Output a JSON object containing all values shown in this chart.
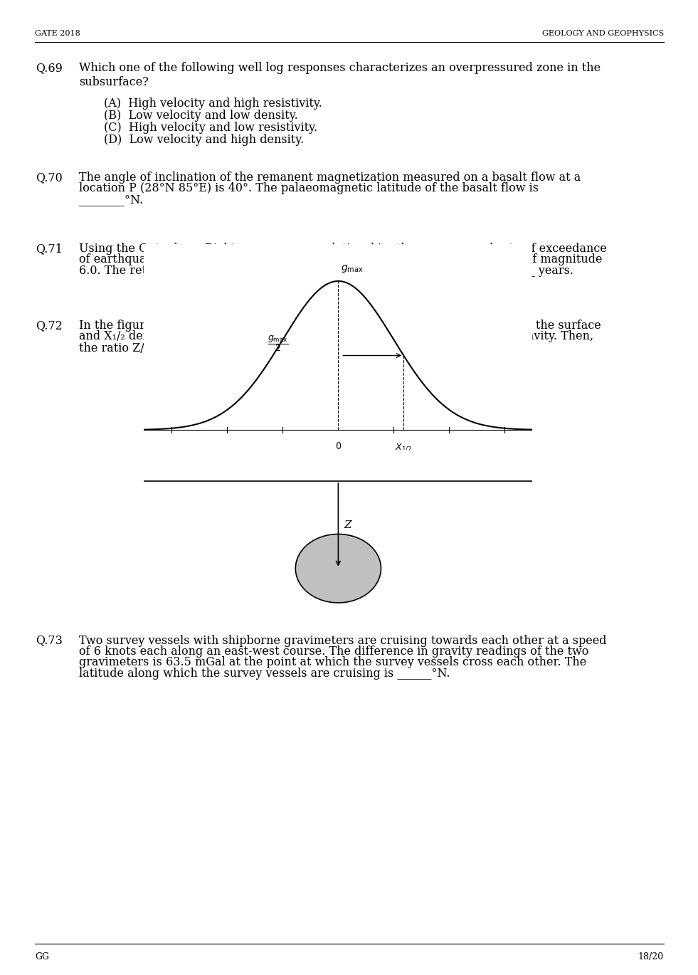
{
  "header_left": "GATE 2018",
  "header_right": "GEOLOGY AND GEOPHYSICS",
  "footer_left": "GG",
  "footer_right": "18/20",
  "bg_color": "#ffffff",
  "text_color": "#000000",
  "q69_num": "Q.69",
  "q69_text": "Which one of the following well log responses characterizes an overpressured zone in the\nsubsurface?",
  "q69_options": [
    "(A)  High velocity and high resistivity.",
    "(B)  Low velocity and low density.",
    "(C)  High velocity and low resistivity.",
    "(D)  Low velocity and high density."
  ],
  "q70_num": "Q.70",
  "q70_text": "The angle of inclination of the remanent magnetization measured on a basalt flow at a\nlocation P (28°N 85°E) is 40°. The palaeomagnetic latitude of the basalt flow is\n________°N.",
  "q71_num": "Q.71",
  "q71_text": "Using the Gutenberg-Richter recurrence relationship, the mean annual rate of exceedance\nof earthquake occurrence in a seismic belt is 0.3 per year for an earthquake of magnitude\n6.0. The return period for an earthquake of magnitude 6.0 in this belt is ______ years.",
  "q72_num": "Q.72",
  "q72_text": "In the figure below, Z denotes the depth to the center of a buried sphere from the surface\nand X₁₂ denotes the half-width of the profile at half the maximum value of gravity. Then,\nthe ratio Z/X₁₂ is ________.  ",
  "q73_num": "Q.73",
  "q73_text": "Two survey vessels with shipborne gravimeters are cruising towards each other at a speed\nof 6 knots each along an east-west course. The difference in gravity readings of the two\ngravimeters is 63.5 mGal at the point at which the survey vessels cross each other. The\nlatitude along which the survey vessels are cruising is ______°N."
}
